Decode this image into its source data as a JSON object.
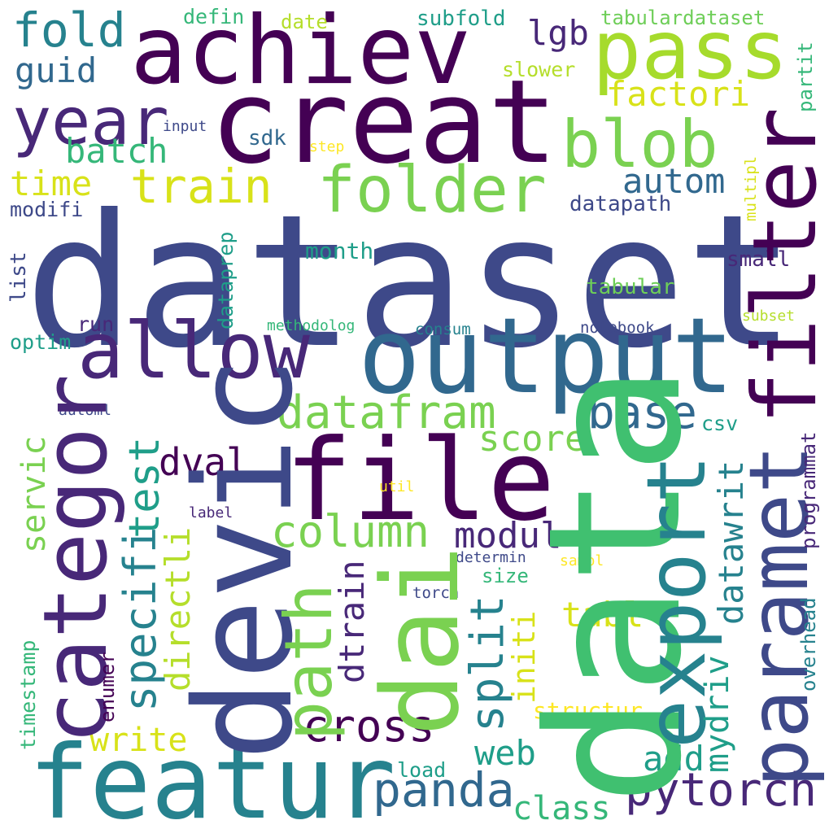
{
  "palette": [
    "#440154",
    "#482878",
    "#3e4989",
    "#31688e",
    "#26828e",
    "#1f9e89",
    "#35b779",
    "#6ece58",
    "#b5de2b",
    "#fde725"
  ],
  "words": [
    {
      "text": "dataset",
      "color": "#3e4989"
    },
    {
      "text": "data",
      "color": "#40c070"
    },
    {
      "text": "creat",
      "color": "#440154"
    },
    {
      "text": "achiev",
      "color": "#440154"
    },
    {
      "text": "devic",
      "color": "#3e4989"
    },
    {
      "text": "file",
      "color": "#440154"
    },
    {
      "text": "featur",
      "color": "#26828e"
    },
    {
      "text": "output",
      "color": "#31688e"
    },
    {
      "text": "filter",
      "color": "#440154"
    },
    {
      "text": "paramet",
      "color": "#3e4989"
    },
    {
      "text": "categor",
      "color": "#482878"
    },
    {
      "text": "allow",
      "color": "#482878"
    },
    {
      "text": "export",
      "color": "#26828e"
    },
    {
      "text": "dai",
      "color": "#7ad151"
    },
    {
      "text": "pass",
      "color": "#a6db2c"
    },
    {
      "text": "blob",
      "color": "#7ad151"
    },
    {
      "text": "year",
      "color": "#482878"
    },
    {
      "text": "folder",
      "color": "#7ad151"
    },
    {
      "text": "path",
      "color": "#7ad151"
    },
    {
      "text": "fold",
      "color": "#26828e"
    },
    {
      "text": "train",
      "color": "#d8e219"
    },
    {
      "text": "test",
      "color": "#1f9e89"
    },
    {
      "text": "datafram",
      "color": "#7ad151"
    },
    {
      "text": "column",
      "color": "#7ad151"
    },
    {
      "text": "specifi",
      "color": "#26828e"
    },
    {
      "text": "cross",
      "color": "#440154"
    },
    {
      "text": "panda",
      "color": "#31688e"
    },
    {
      "text": "pytorch",
      "color": "#482878"
    },
    {
      "text": "split",
      "color": "#26828e"
    },
    {
      "text": "base",
      "color": "#31688e"
    },
    {
      "text": "directli",
      "color": "#b5de2b"
    },
    {
      "text": "dtrain",
      "color": "#482878"
    },
    {
      "text": "datawrit",
      "color": "#26828e"
    },
    {
      "text": "modul",
      "color": "#482878"
    },
    {
      "text": "score",
      "color": "#7ad151"
    },
    {
      "text": "dval",
      "color": "#440154"
    },
    {
      "text": "mydriv",
      "color": "#1f9e89"
    },
    {
      "text": "write",
      "color": "#d8e219"
    },
    {
      "text": "servic",
      "color": "#7ad151"
    },
    {
      "text": "factori",
      "color": "#d8e219"
    },
    {
      "text": "autom",
      "color": "#31688e"
    },
    {
      "text": "lgb",
      "color": "#482878"
    },
    {
      "text": "guid",
      "color": "#31688e"
    },
    {
      "text": "batch",
      "color": "#35b779"
    },
    {
      "text": "time",
      "color": "#d8e219"
    },
    {
      "text": "initi",
      "color": "#d8e219"
    },
    {
      "text": "tabl",
      "color": "#d8e219"
    },
    {
      "text": "web",
      "color": "#1f9e89"
    },
    {
      "text": "add",
      "color": "#1f9e89"
    },
    {
      "text": "class",
      "color": "#35b779"
    },
    {
      "text": "structur",
      "color": "#fde725"
    },
    {
      "text": "month",
      "color": "#1f9e89"
    },
    {
      "text": "small",
      "color": "#482878"
    },
    {
      "text": "tabular",
      "color": "#6ece58"
    },
    {
      "text": "datapath",
      "color": "#3e4989"
    },
    {
      "text": "sdk",
      "color": "#31688e"
    },
    {
      "text": "subfold",
      "color": "#1f9e89"
    },
    {
      "text": "tabulardataset",
      "color": "#6ece58"
    },
    {
      "text": "slower",
      "color": "#b5de2b"
    },
    {
      "text": "defin",
      "color": "#35b779"
    },
    {
      "text": "date",
      "color": "#b5de2b"
    },
    {
      "text": "input",
      "color": "#3e4989"
    },
    {
      "text": "step",
      "color": "#fde725"
    },
    {
      "text": "modifi",
      "color": "#3e4989"
    },
    {
      "text": "list",
      "color": "#3e4989"
    },
    {
      "text": "optim",
      "color": "#1f9e89"
    },
    {
      "text": "run",
      "color": "#482878"
    },
    {
      "text": "dataprep",
      "color": "#1f9e89"
    },
    {
      "text": "methodolog",
      "color": "#35b779"
    },
    {
      "text": "consum",
      "color": "#26828e"
    },
    {
      "text": "notebook",
      "color": "#3e4989"
    },
    {
      "text": "subset",
      "color": "#b5de2b"
    },
    {
      "text": "multipl",
      "color": "#d8e219"
    },
    {
      "text": "partit",
      "color": "#35b779"
    },
    {
      "text": "csv",
      "color": "#1f9e89"
    },
    {
      "text": "automl",
      "color": "#3e4989"
    },
    {
      "text": "util",
      "color": "#fde725"
    },
    {
      "text": "label",
      "color": "#482878"
    },
    {
      "text": "determin",
      "color": "#3e4989"
    },
    {
      "text": "sampl",
      "color": "#fde725"
    },
    {
      "text": "size",
      "color": "#35b779"
    },
    {
      "text": "torch",
      "color": "#3e4989"
    },
    {
      "text": "programmat",
      "color": "#482878"
    },
    {
      "text": "overhead",
      "color": "#26828e"
    },
    {
      "text": "timestamp",
      "color": "#35b779"
    },
    {
      "text": "enumer",
      "color": "#440154"
    },
    {
      "text": "load",
      "color": "#1f9e89"
    }
  ]
}
